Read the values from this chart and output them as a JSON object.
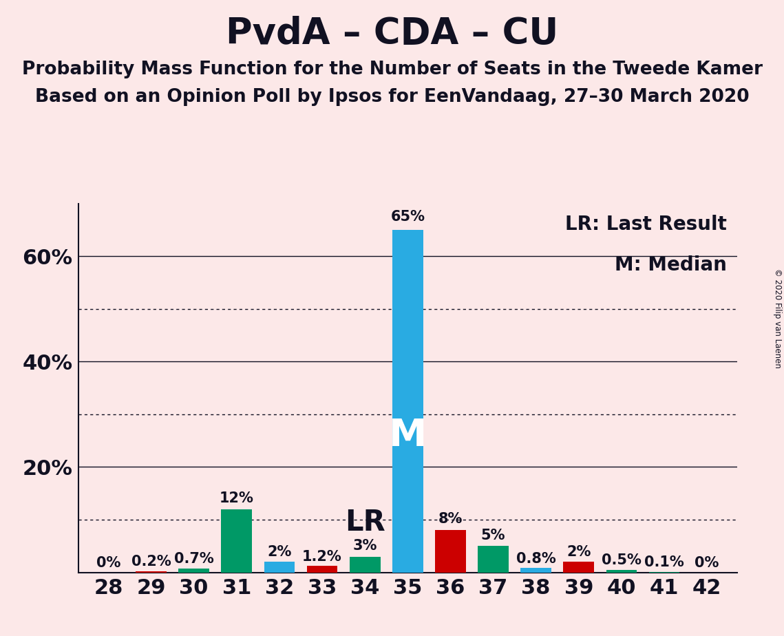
{
  "title": "PvdA – CDA – CU",
  "subtitle1": "Probability Mass Function for the Number of Seats in the Tweede Kamer",
  "subtitle2": "Based on an Opinion Poll by Ipsos for EenVandaag, 27–30 March 2020",
  "copyright": "© 2020 Filip van Laenen",
  "legend_lr": "LR: Last Result",
  "legend_m": "M: Median",
  "background_color": "#fce8e8",
  "seats": [
    28,
    29,
    30,
    31,
    32,
    33,
    34,
    35,
    36,
    37,
    38,
    39,
    40,
    41,
    42
  ],
  "values": [
    0.0,
    0.2,
    0.7,
    12.0,
    2.0,
    1.2,
    3.0,
    65.0,
    8.0,
    5.0,
    0.8,
    2.0,
    0.5,
    0.1,
    0.0
  ],
  "labels": [
    "0%",
    "0.2%",
    "0.7%",
    "12%",
    "2%",
    "1.2%",
    "3%",
    "65%",
    "8%",
    "5%",
    "0.8%",
    "2%",
    "0.5%",
    "0.1%",
    "0%"
  ],
  "bar_colors": [
    "#009966",
    "#cc0000",
    "#009966",
    "#009966",
    "#29abe2",
    "#cc0000",
    "#009966",
    "#29abe2",
    "#cc0000",
    "#009966",
    "#29abe2",
    "#cc0000",
    "#009966",
    "#009966",
    "#009966"
  ],
  "lr_seat": 34,
  "median_seat": 35,
  "ylim_max": 70,
  "solid_yticks": [
    20,
    40,
    60
  ],
  "dotted_yticks": [
    10,
    30,
    50
  ],
  "ylabel_ticks": [
    20,
    40,
    60
  ],
  "axis_color": "#111122",
  "text_color": "#111122",
  "title_fontsize": 38,
  "subtitle_fontsize": 19,
  "label_fontsize": 15,
  "tick_fontsize": 22,
  "legend_fontsize": 20,
  "bar_width": 0.72
}
